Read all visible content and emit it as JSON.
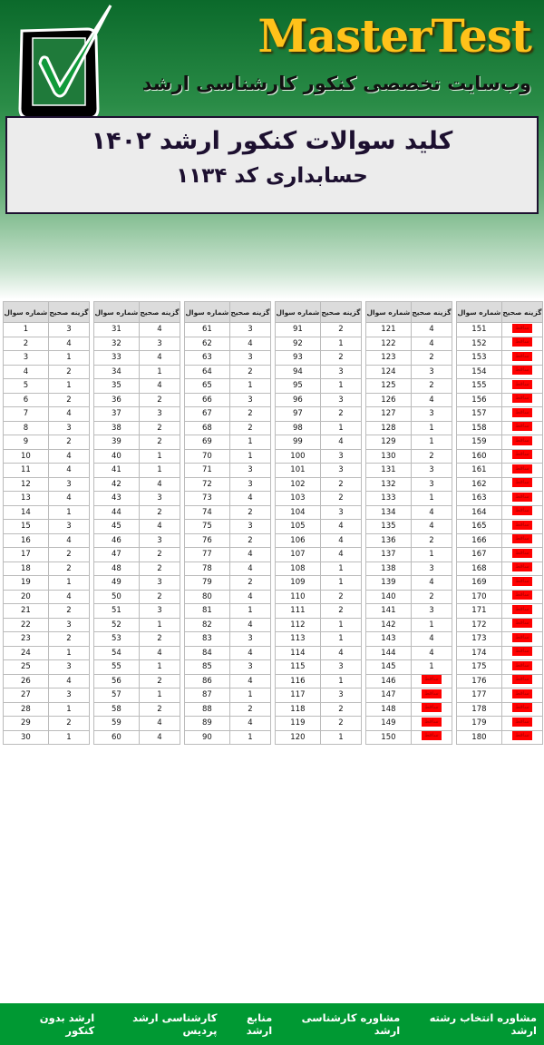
{
  "header": {
    "brand": "MasterTest",
    "tagline": "وب‌سایت تخصصی کنکور کارشناسی ارشد",
    "logo_icon": "checkbox-checkmark-icon",
    "colors": {
      "brand": "#ffc21a",
      "background": "#0b6a2b",
      "footer": "#009933",
      "void": "#ff0000"
    }
  },
  "title": {
    "line1": "کلید سوالات کنکور ارشد ۱۴۰۲",
    "line2": "حسابداری کد ۱۱۳۴"
  },
  "answer_key": {
    "header_question": "شماره سوال",
    "header_answer": "گزینه صحیح",
    "void_label": "ساقط",
    "answers": [
      3,
      4,
      1,
      2,
      1,
      2,
      4,
      3,
      2,
      4,
      4,
      3,
      4,
      1,
      3,
      4,
      2,
      2,
      1,
      4,
      2,
      3,
      2,
      1,
      3,
      4,
      3,
      1,
      2,
      1,
      4,
      3,
      4,
      1,
      4,
      2,
      3,
      2,
      2,
      1,
      1,
      4,
      3,
      2,
      4,
      3,
      2,
      2,
      3,
      2,
      3,
      1,
      2,
      4,
      1,
      2,
      1,
      2,
      4,
      4,
      3,
      4,
      3,
      2,
      1,
      3,
      2,
      2,
      1,
      1,
      3,
      3,
      4,
      2,
      3,
      2,
      4,
      4,
      2,
      4,
      1,
      4,
      3,
      4,
      3,
      4,
      1,
      2,
      4,
      1,
      2,
      1,
      2,
      3,
      1,
      3,
      2,
      1,
      4,
      3,
      3,
      2,
      2,
      3,
      4,
      4,
      4,
      1,
      1,
      2,
      2,
      1,
      1,
      4,
      3,
      1,
      3,
      2,
      2,
      1,
      4,
      4,
      2,
      3,
      2,
      4,
      3,
      1,
      1,
      2,
      3,
      3,
      1,
      4,
      4,
      2,
      1,
      3,
      4,
      2,
      3,
      1,
      4,
      4,
      1,
      "ساقط",
      "ساقط",
      "ساقط",
      "ساقط",
      "ساقط",
      "ساقط",
      "ساقط",
      "ساقط",
      "ساقط",
      "ساقط",
      "ساقط",
      "ساقط",
      "ساقط",
      "ساقط",
      "ساقط",
      "ساقط",
      "ساقط",
      "ساقط",
      "ساقط",
      "ساقط",
      "ساقط",
      "ساقط",
      "ساقط",
      "ساقط",
      "ساقط",
      "ساقط",
      "ساقط",
      "ساقط",
      "ساقط",
      "ساقط",
      "ساقط",
      "ساقط",
      "ساقط",
      "ساقط",
      "ساقط"
    ]
  },
  "footer": {
    "links": [
      "ارشد بدون کنکور",
      "کارشناسی ارشد پردیس",
      "منابع ارشد",
      "مشاوره کارشناسی ارشد",
      "مشاوره انتخاب رشته ارشد"
    ]
  }
}
